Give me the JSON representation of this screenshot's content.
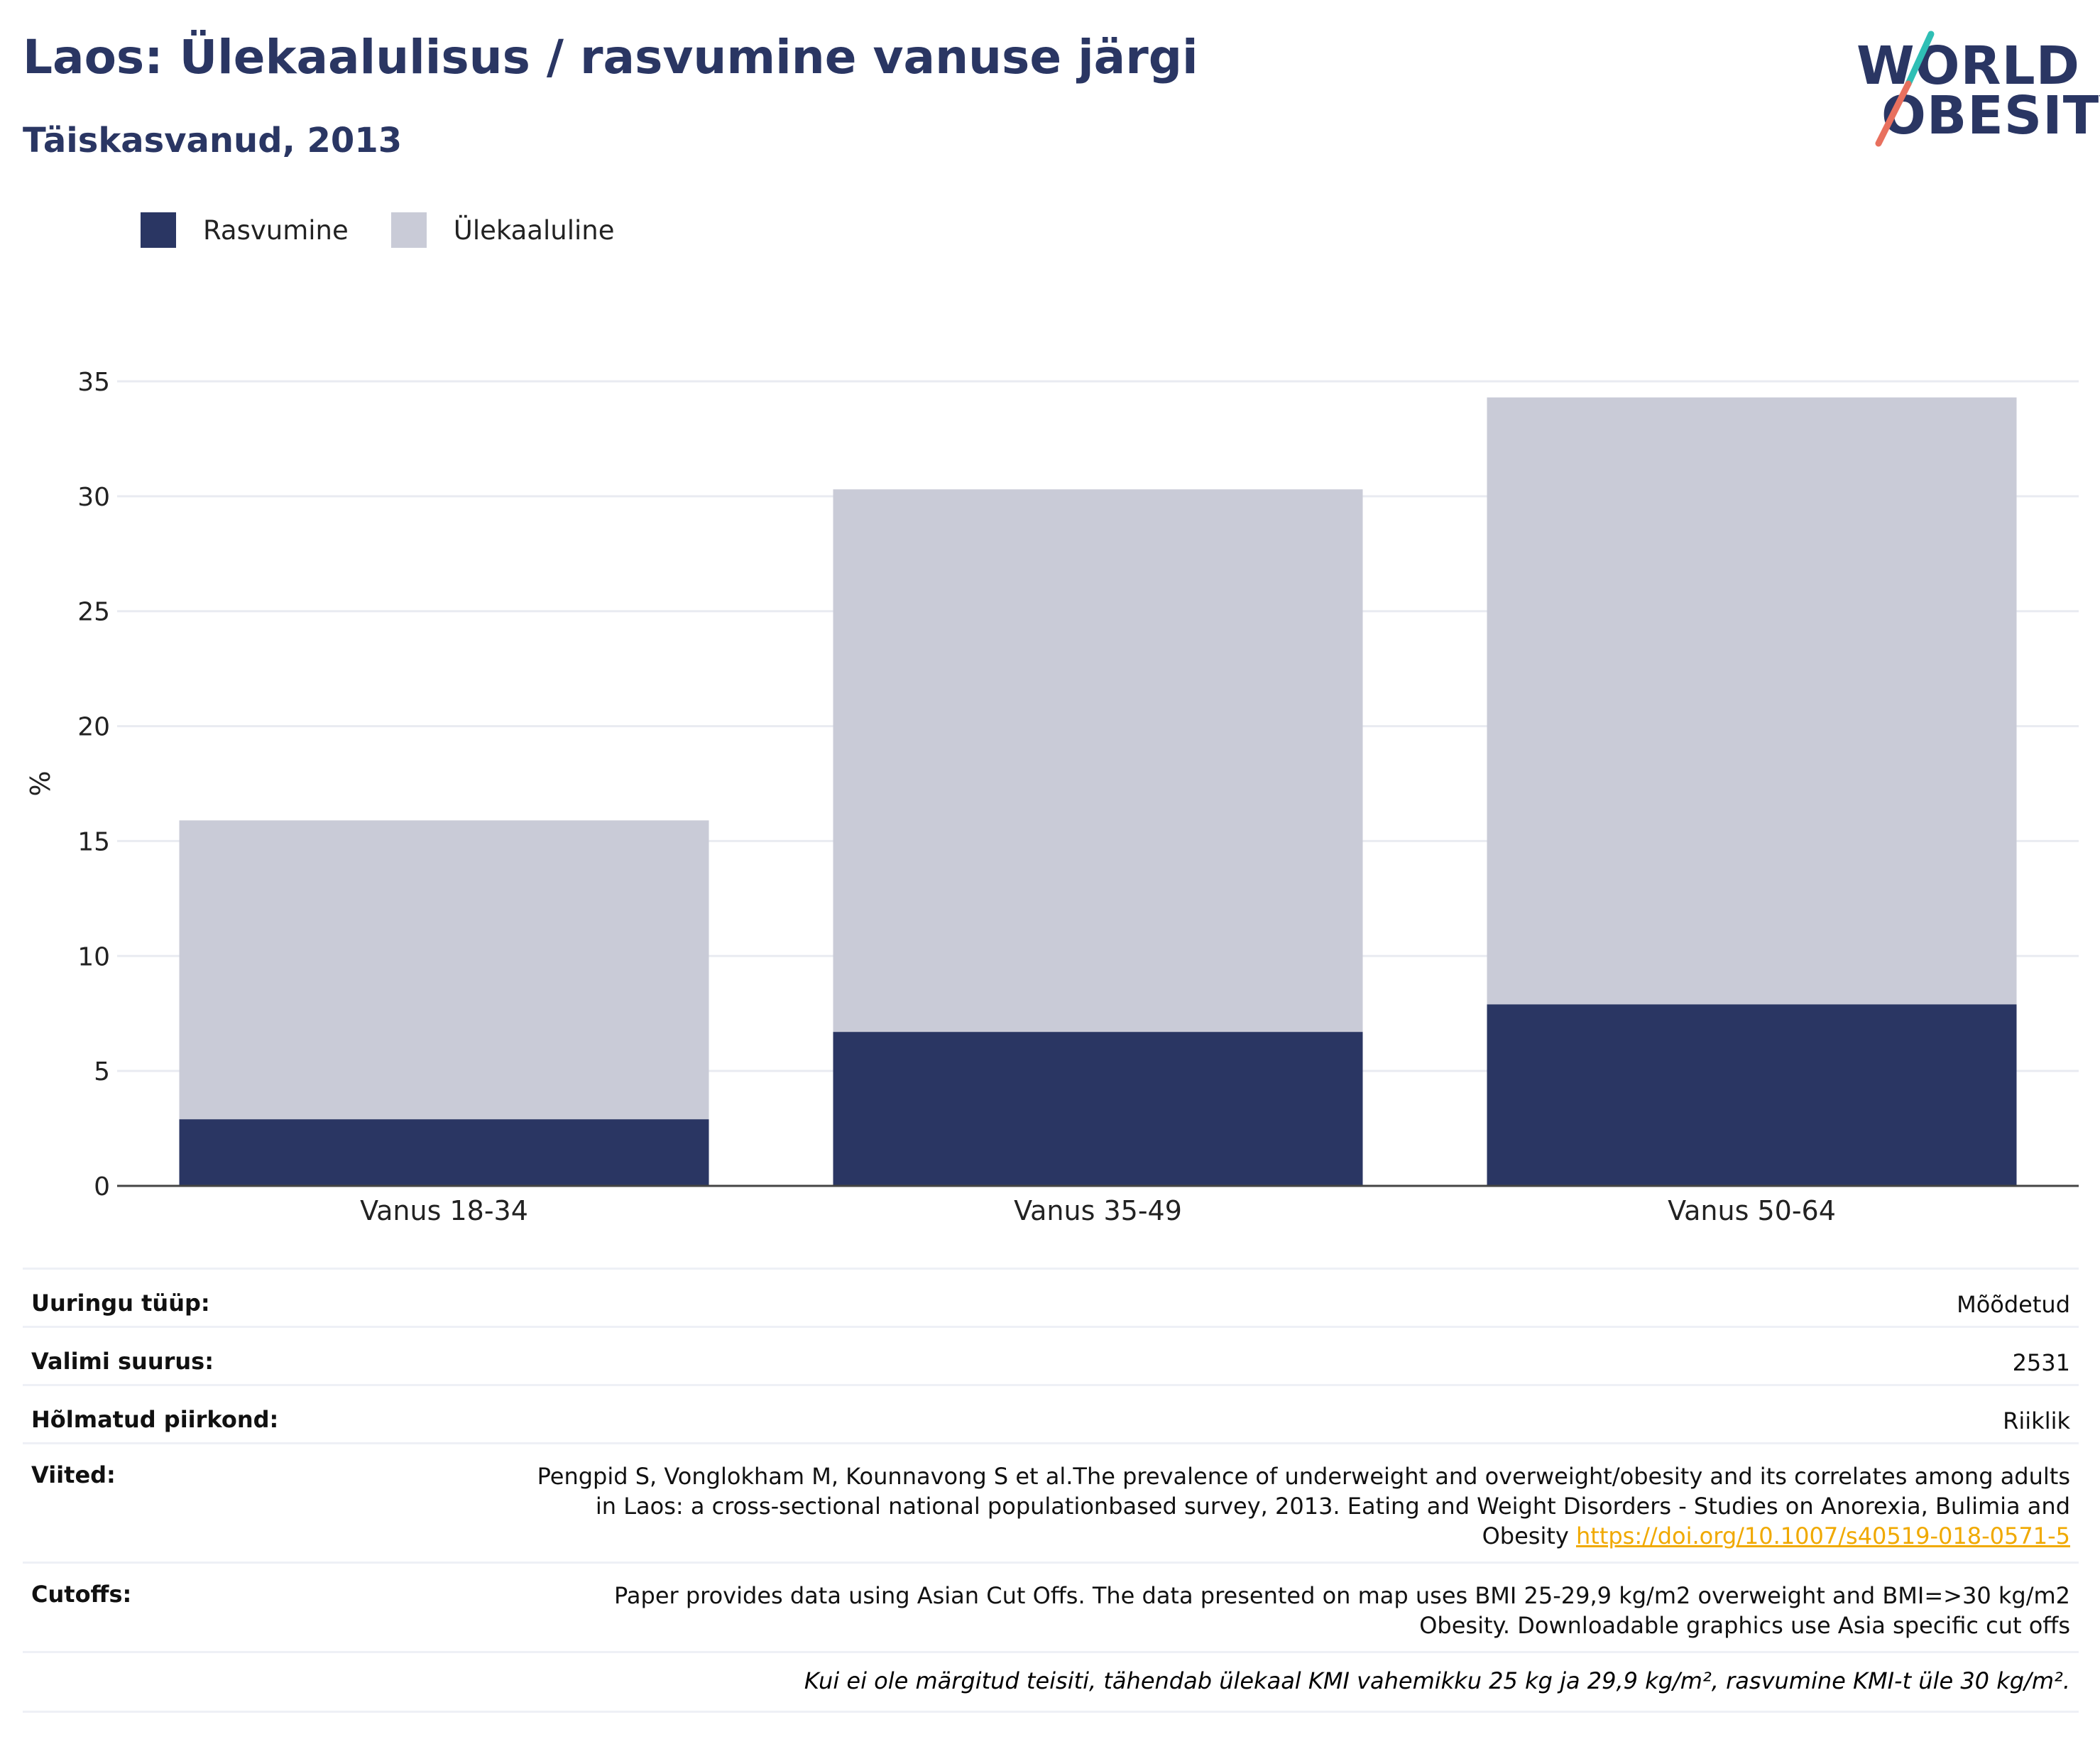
{
  "header": {
    "title": "Laos: Ülekaalulisus / rasvumine vanuse järgi",
    "subtitle": "Täiskasvanud, 2013"
  },
  "logo": {
    "line1": "WORLD",
    "line2": "OBESITY"
  },
  "colors": {
    "obesity": "#2a3663",
    "overweight": "#c9cbd7",
    "title": "#2a3663",
    "link": "#f0a900",
    "logo_teal": "#2fbfb5",
    "logo_coral": "#e8705e"
  },
  "chart_data": {
    "type": "bar",
    "stacked": true,
    "categories": [
      "Vanus 18-34",
      "Vanus 35-49",
      "Vanus 50-64"
    ],
    "series": [
      {
        "name": "Rasvumine",
        "values": [
          2.9,
          6.7,
          7.9
        ]
      },
      {
        "name": "Ülekaaluline",
        "values": [
          13.0,
          23.6,
          26.4
        ]
      }
    ],
    "ylabel": "%",
    "ylim": [
      0,
      35
    ],
    "yticks": [
      0,
      5,
      10,
      15,
      20,
      25,
      30,
      35
    ],
    "grid": true,
    "legend": "top-left"
  },
  "info": {
    "rows": [
      {
        "label": "Uuringu tüüp:",
        "value": "Mõõdetud"
      },
      {
        "label": "Valimi suurus:",
        "value": "2531"
      },
      {
        "label": "Hõlmatud piirkond:",
        "value": "Riiklik"
      }
    ],
    "references": {
      "label": "Viited:",
      "line1": "Pengpid S, Vonglokham M, Kounnavong S et al.The prevalence of underweight and overweight/obesity and its correlates among adults",
      "line2": "in Laos: a cross-sectional national populationbased survey, 2013. Eating and Weight Disorders - Studies on Anorexia, Bulimia and",
      "line3": "Obesity",
      "link": "https://doi.org/10.1007/s40519-018-0571-5"
    },
    "cutoffs": {
      "label": "Cutoffs:",
      "line1": "Paper provides data using Asian Cut Offs. The data presented on map uses BMI 25-29,9 kg/m2 overweight and BMI=>30 kg/m2",
      "line2": "Obesity. Downloadable graphics use Asia specific cut offs"
    },
    "note": "Kui ei ole märgitud teisiti, tähendab ülekaal KMI vahemikku 25 kg ja 29,9 kg/m², rasvumine KMI-t üle 30 kg/m²."
  }
}
